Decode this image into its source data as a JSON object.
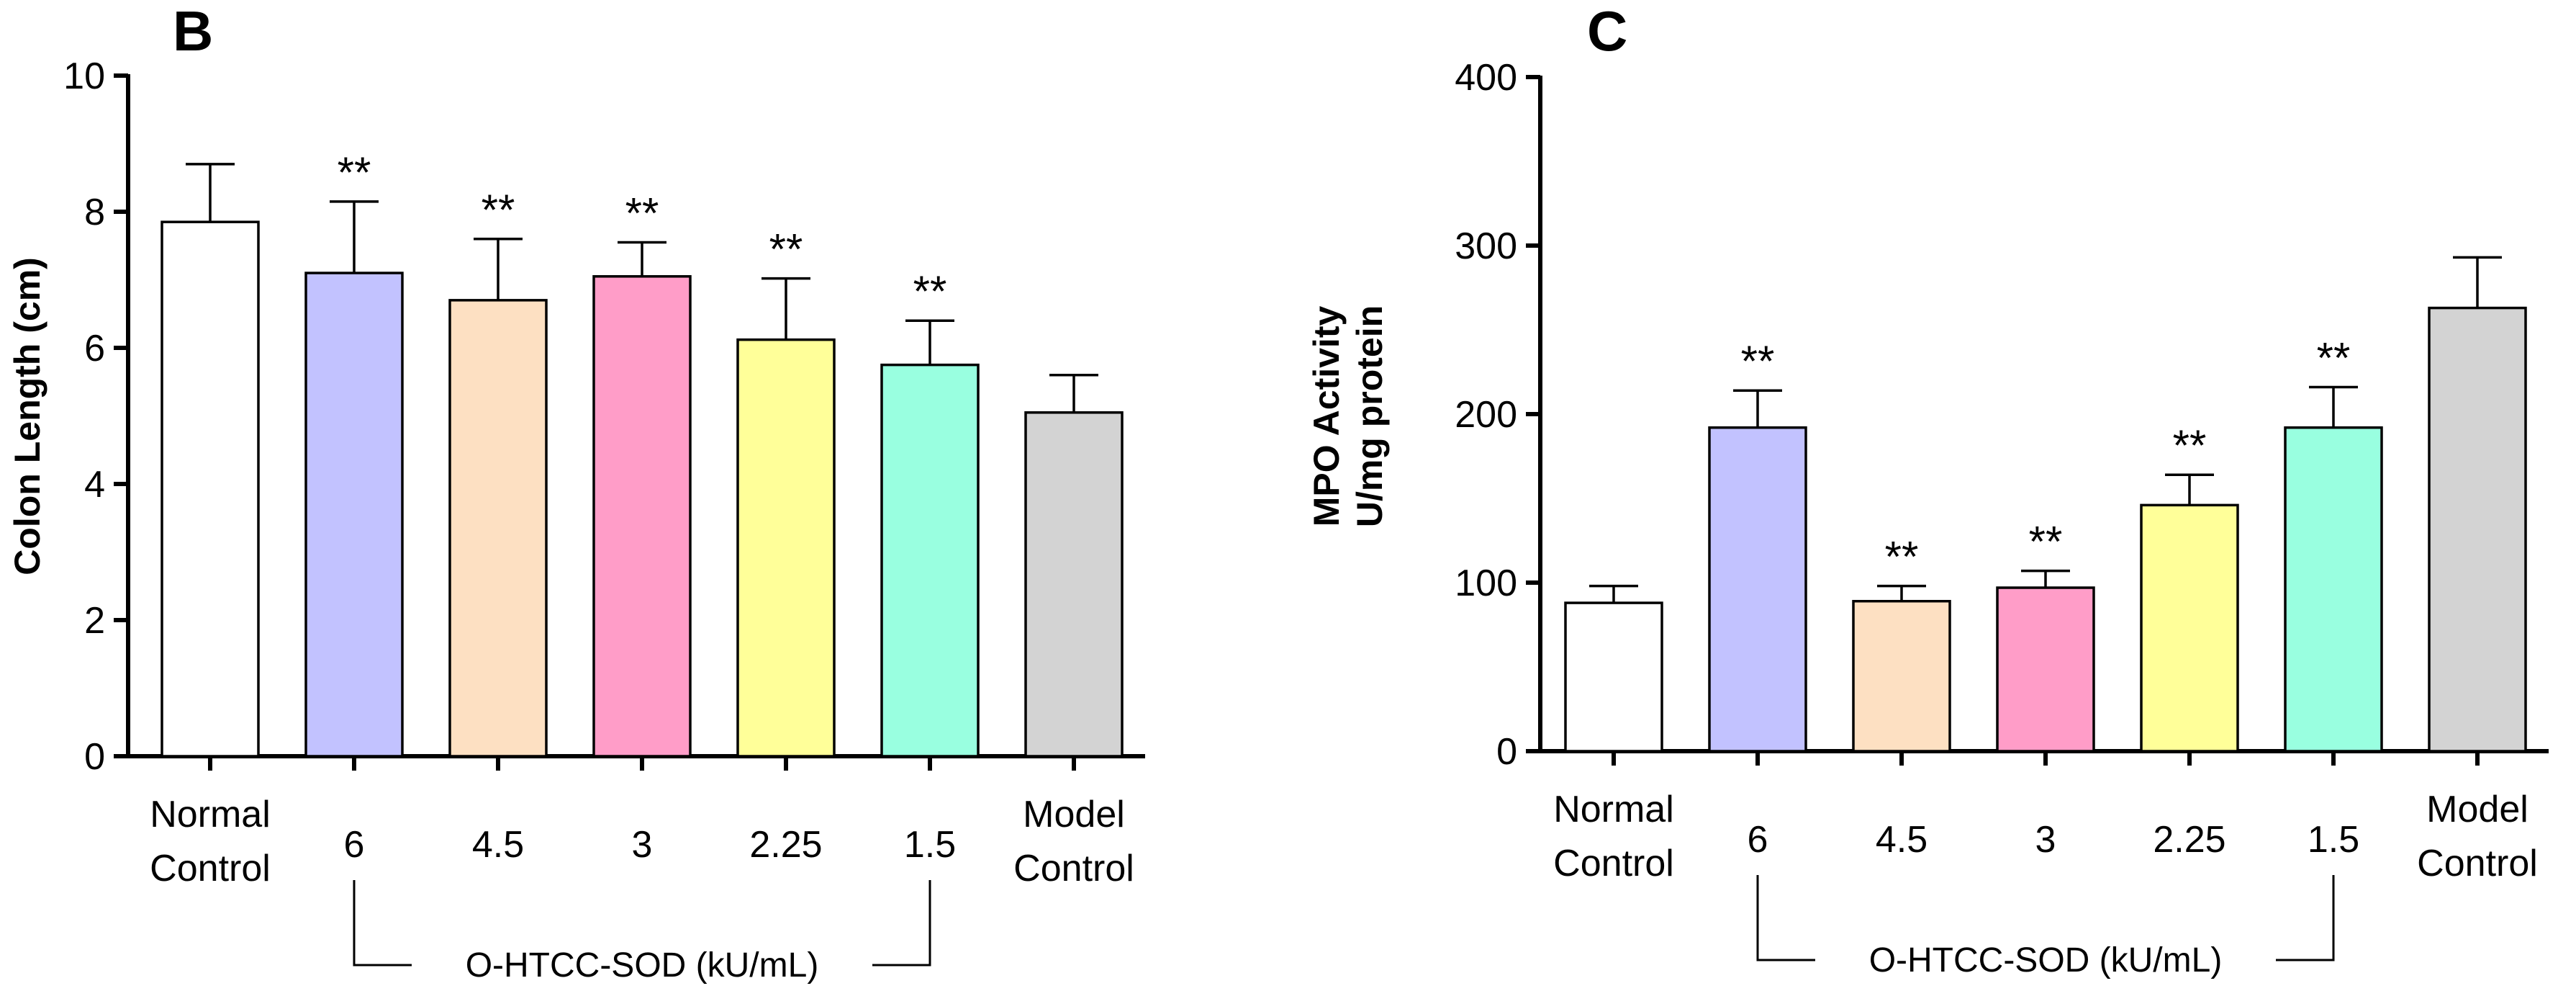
{
  "chart_data": [
    {
      "panel": "B",
      "type": "bar",
      "ylabel": "Colon Length (cm)",
      "ylim": [
        0,
        10
      ],
      "yticks": [
        0,
        2,
        4,
        6,
        8,
        10
      ],
      "categories": [
        "Normal Control",
        "6",
        "4.5",
        "3",
        "2.25",
        "1.5",
        "Model Control"
      ],
      "category_lines": [
        [
          "Normal",
          "Control"
        ],
        [
          "6"
        ],
        [
          "4.5"
        ],
        [
          "3"
        ],
        [
          "2.25"
        ],
        [
          "1.5"
        ],
        [
          "Model",
          "Control"
        ]
      ],
      "values": [
        7.85,
        7.1,
        6.7,
        7.05,
        6.12,
        5.75,
        5.05
      ],
      "errors": [
        0.85,
        1.05,
        0.9,
        0.5,
        0.9,
        0.65,
        0.55
      ],
      "significance": [
        "",
        "**",
        "**",
        "**",
        "**",
        "**",
        ""
      ],
      "colors": [
        "#ffffff",
        "#c2c2ff",
        "#fde0c2",
        "#ff9dc8",
        "#ffff99",
        "#99ffe0",
        "#d3d3d3"
      ],
      "group_bracket": {
        "label": "O-HTCC-SOD (kU/mL)",
        "from": 1,
        "to": 5
      }
    },
    {
      "panel": "C",
      "type": "bar",
      "ylabel": [
        "MPO Activity",
        "U/mg protein"
      ],
      "ylim": [
        0,
        400
      ],
      "yticks": [
        0,
        100,
        200,
        300,
        400
      ],
      "categories": [
        "Normal Control",
        "6",
        "4.5",
        "3",
        "2.25",
        "1.5",
        "Model Control"
      ],
      "category_lines": [
        [
          "Normal",
          "Control"
        ],
        [
          "6"
        ],
        [
          "4.5"
        ],
        [
          "3"
        ],
        [
          "2.25"
        ],
        [
          "1.5"
        ],
        [
          "Model",
          "Control"
        ]
      ],
      "values": [
        88,
        192,
        89,
        97,
        146,
        192,
        263
      ],
      "errors": [
        10,
        22,
        9,
        10,
        18,
        24,
        30
      ],
      "significance": [
        "",
        "**",
        "**",
        "**",
        "**",
        "**",
        ""
      ],
      "colors": [
        "#ffffff",
        "#c2c2ff",
        "#fde0c2",
        "#ff9dc8",
        "#ffff99",
        "#99ffe0",
        "#d3d3d3"
      ],
      "group_bracket": {
        "label": "O-HTCC-SOD (kU/mL)",
        "from": 1,
        "to": 5
      }
    }
  ]
}
